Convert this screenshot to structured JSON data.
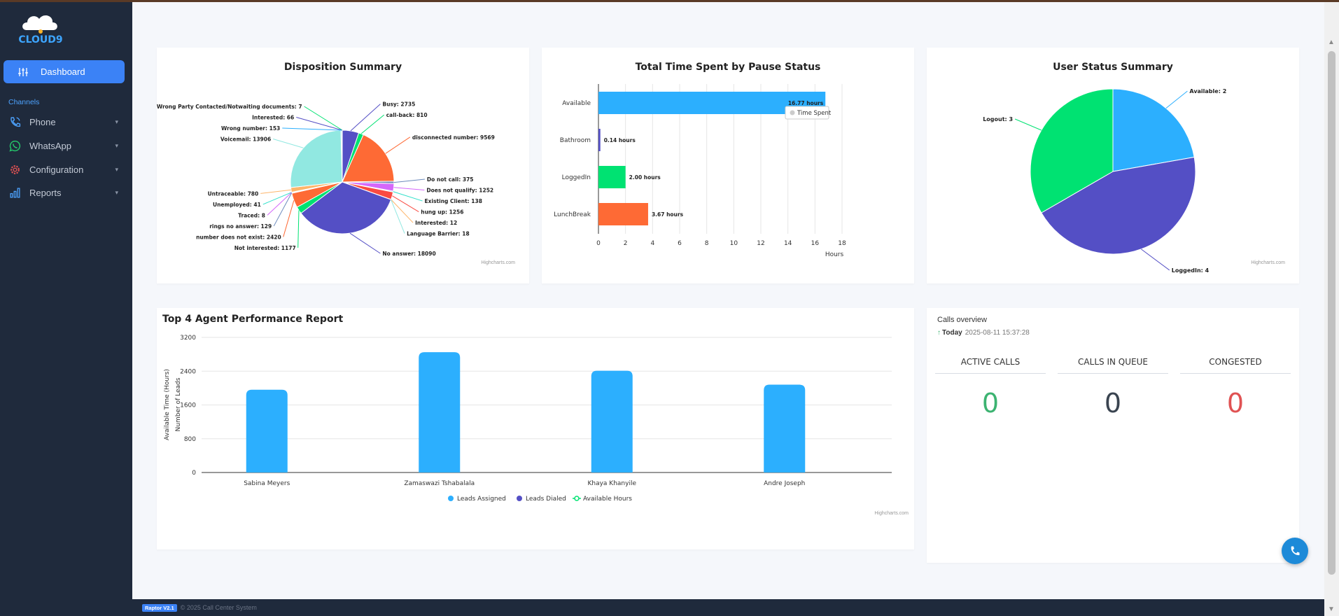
{
  "sidebar": {
    "logo_text": "CLOUD9",
    "dashboard_label": "Dashboard",
    "section_label": "Channels",
    "items": [
      {
        "label": "Phone",
        "icon": "phone-call-icon"
      },
      {
        "label": "WhatsApp",
        "icon": "whatsapp-icon"
      },
      {
        "label": "Configuration",
        "icon": "gear-icon"
      },
      {
        "label": "Reports",
        "icon": "bar-chart-icon"
      }
    ]
  },
  "footer": {
    "version": "Raptor V2.1",
    "copyright": "© 2025 Call Center System"
  },
  "colors": {
    "accent": "#3b82f6",
    "blue": "#2caffe",
    "purple": "#544fc5",
    "green": "#00e272",
    "orange": "#fe6a35",
    "teal": "#8ee6dd",
    "pink": "#d568fb",
    "red": "#e05253"
  },
  "credits": "Highcharts.com",
  "disposition": {
    "title": "Disposition Summary",
    "chart_data": {
      "type": "pie",
      "title": "Disposition Summary",
      "slices": [
        {
          "label": "Busy: 2735",
          "value": 2735,
          "color": "#544fc5"
        },
        {
          "label": "call-back: 810",
          "value": 810,
          "color": "#00e272"
        },
        {
          "label": "disconnected number: 9569",
          "value": 9569,
          "color": "#fe6a35"
        },
        {
          "label": "Do not call: 375",
          "value": 375,
          "color": "#6b8abc"
        },
        {
          "label": "Does not qualify: 1252",
          "value": 1252,
          "color": "#d568fb"
        },
        {
          "label": "Existing Client: 138",
          "value": 138,
          "color": "#2ee0ca"
        },
        {
          "label": "hung up: 1256",
          "value": 1256,
          "color": "#fa4b42"
        },
        {
          "label": "Interested: 12",
          "value": 12,
          "color": "#feb56a"
        },
        {
          "label": "Language Barrier: 18",
          "value": 18,
          "color": "#91e8e1"
        },
        {
          "label": "No answer: 18090",
          "value": 18090,
          "color": "#544fc5"
        },
        {
          "label": "Not interested: 1177",
          "value": 1177,
          "color": "#00e272"
        },
        {
          "label": "number does not exist: 2420",
          "value": 2420,
          "color": "#fe6a35"
        },
        {
          "label": "rings no answer: 129",
          "value": 129,
          "color": "#6b8abc"
        },
        {
          "label": "Traced: 8",
          "value": 8,
          "color": "#d568fb"
        },
        {
          "label": "Unemployed: 41",
          "value": 41,
          "color": "#2ee0ca"
        },
        {
          "label": "Untraceable: 780",
          "value": 780,
          "color": "#feb56a"
        },
        {
          "label": "Voicemail: 13906",
          "value": 13906,
          "color": "#91e8e1"
        },
        {
          "label": "Wrong number: 153",
          "value": 153,
          "color": "#2caffe"
        },
        {
          "label": "Interested: 66",
          "value": 66,
          "color": "#544fc5"
        },
        {
          "label": "Wrong Party Contacted/Notwaiting documents: 7",
          "value": 7,
          "color": "#00e272"
        }
      ]
    }
  },
  "pause": {
    "title": "Total Time Spent by Pause Status",
    "tooltip": "Time Spent",
    "chart_data": {
      "type": "bar",
      "title": "Total Time Spent by Pause Status",
      "categories": [
        "Available",
        "Bathroom",
        "LoggedIn",
        "LunchBreak"
      ],
      "values": [
        16.77,
        0.14,
        2.0,
        3.67
      ],
      "data_labels": [
        "16.77 hours",
        "0.14 hours",
        "2.00 hours",
        "3.67 hours"
      ],
      "colors": [
        "#2caffe",
        "#544fc5",
        "#00e272",
        "#fe6a35"
      ],
      "xlabel": "Hours",
      "xlim": [
        0,
        18
      ],
      "ticks": [
        "0",
        "2",
        "4",
        "6",
        "8",
        "10",
        "12",
        "14",
        "16",
        "18"
      ]
    }
  },
  "user_status": {
    "title": "User Status Summary",
    "chart_data": {
      "type": "pie",
      "title": "User Status Summary",
      "slices": [
        {
          "label": "Available: 2",
          "value": 2,
          "color": "#2caffe"
        },
        {
          "label": "LoggedIn: 4",
          "value": 4,
          "color": "#544fc5"
        },
        {
          "label": "Logout: 3",
          "value": 3,
          "color": "#00e272"
        }
      ]
    }
  },
  "agents": {
    "title": "Top 4 Agent Performance Report",
    "chart_data": {
      "type": "bar",
      "title": "Top 4 Agent Performance Report",
      "categories": [
        "Sabina Meyers",
        "Zamaswazi Tshabalala",
        "Khaya Khanyile",
        "Andre Joseph"
      ],
      "series": [
        {
          "name": "Leads Assigned",
          "values": [
            1960,
            2850,
            2410,
            2080
          ],
          "color": "#2caffe"
        },
        {
          "name": "Leads Dialed",
          "values": [
            0,
            0,
            0,
            0
          ],
          "color": "#544fc5"
        },
        {
          "name": "Available Hours",
          "values": [
            0,
            0,
            0,
            0
          ],
          "color": "#00e272"
        }
      ],
      "ylabel": "Number of Leads",
      "ylabel2": "Available Time (Hours)",
      "ylim": [
        0,
        3200
      ],
      "yticks": [
        "0",
        "800",
        "1600",
        "2400",
        "3200"
      ]
    }
  },
  "calls": {
    "title": "Calls overview",
    "today_label": "Today",
    "timestamp": "2025-08-11 15:37:28",
    "stats": [
      {
        "label": "ACTIVE CALLS",
        "value": "0",
        "color": "#3cb371"
      },
      {
        "label": "CALLS IN QUEUE",
        "value": "0",
        "color": "#3a4450"
      },
      {
        "label": "CONGESTED",
        "value": "0",
        "color": "#e05253"
      }
    ]
  }
}
